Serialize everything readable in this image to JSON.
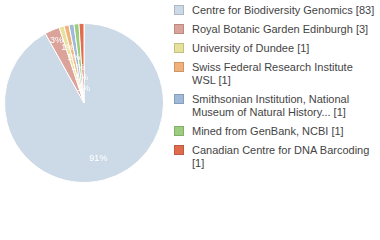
{
  "chart_data": {
    "type": "pie",
    "categories": [
      "Centre for Biodiversity Genomics [83]",
      "Royal Botanic Garden Edinburgh [3]",
      "University of Dundee [1]",
      "Swiss Federal Research Institute WSL [1]",
      "Smithsonian Institution, National Museum of Natural History... [1]",
      "Mined from GenBank, NCBI [1]",
      "Canadian Centre for DNA Barcoding [1]"
    ],
    "values": [
      91,
      3,
      1,
      1,
      1,
      1,
      1
    ],
    "value_labels": [
      "91%",
      "3%",
      "1%",
      "1%",
      "1%",
      "1%",
      "1%"
    ],
    "colors": [
      "#ccd9e6",
      "#dba39a",
      "#e6e29c",
      "#f0b27a",
      "#9fb9d9",
      "#9ccd7e",
      "#e06c4e"
    ],
    "data_labels": true,
    "legend": "right"
  }
}
